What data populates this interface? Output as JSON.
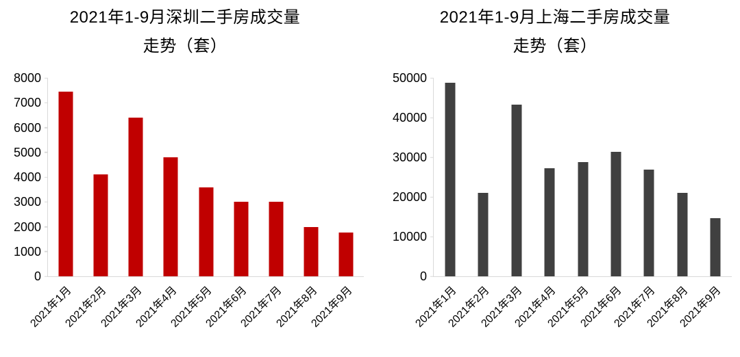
{
  "colors": {
    "shenzhen_bar": "#C00000",
    "shanghai_bar": "#404040",
    "axis_line": "#D9D9D9",
    "text": "#000000",
    "background": "#FFFFFF"
  },
  "chart_data": [
    {
      "type": "bar",
      "title_line1": "2021年1-9月深圳二手房成交量",
      "title_line2": "走势（套）",
      "categories": [
        "2021年1月",
        "2021年2月",
        "2021年3月",
        "2021年4月",
        "2021年5月",
        "2021年6月",
        "2021年7月",
        "2021年8月",
        "2021年9月"
      ],
      "values": [
        7450,
        4100,
        6400,
        4800,
        3600,
        3000,
        3000,
        1980,
        1760
      ],
      "xlabel": "",
      "ylabel": "",
      "ylim": [
        0,
        8000
      ],
      "ytick_step": 1000,
      "yticks": [
        0,
        1000,
        2000,
        3000,
        4000,
        5000,
        6000,
        7000,
        8000
      ],
      "bar_color": "#C00000",
      "grid": false,
      "legend": "none"
    },
    {
      "type": "bar",
      "title_line1": "2021年1-9月上海二手房成交量",
      "title_line2": "走势（套）",
      "categories": [
        "2021年1月",
        "2021年2月",
        "2021年3月",
        "2021年4月",
        "2021年5月",
        "2021年6月",
        "2021年7月",
        "2021年8月",
        "2021年9月"
      ],
      "values": [
        48800,
        21000,
        43200,
        27200,
        28800,
        31300,
        26900,
        21000,
        14700
      ],
      "xlabel": "",
      "ylabel": "",
      "ylim": [
        0,
        50000
      ],
      "ytick_step": 10000,
      "yticks": [
        0,
        10000,
        20000,
        30000,
        40000,
        50000
      ],
      "bar_color": "#404040",
      "grid": false,
      "legend": "none"
    }
  ]
}
